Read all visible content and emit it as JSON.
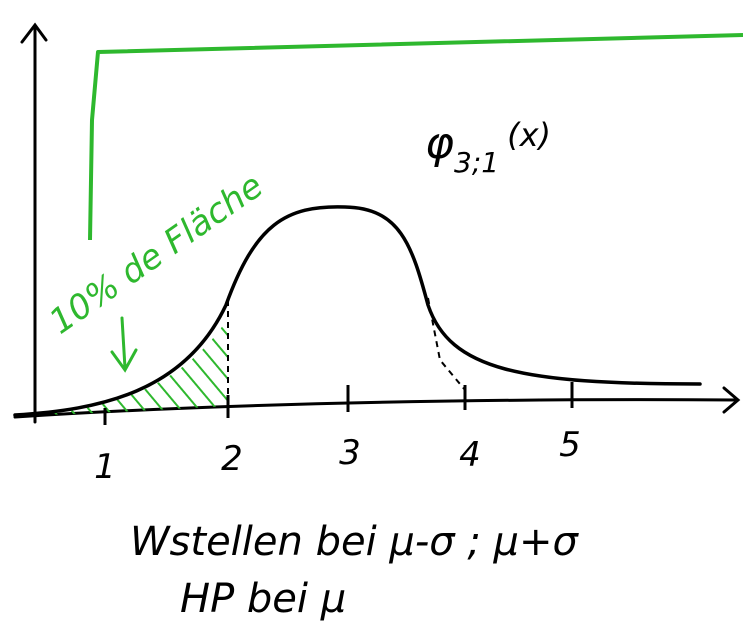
{
  "axis": {
    "ticks": [
      "1",
      "2",
      "3",
      "4",
      "5"
    ]
  },
  "curve_label": {
    "symbol": "φ",
    "subscript": "3;1",
    "argument": "(x)"
  },
  "annotation": "10% de Fläche",
  "notes": [
    "Wstellen bei μ-σ ; μ+σ",
    "HP bei μ"
  ]
}
